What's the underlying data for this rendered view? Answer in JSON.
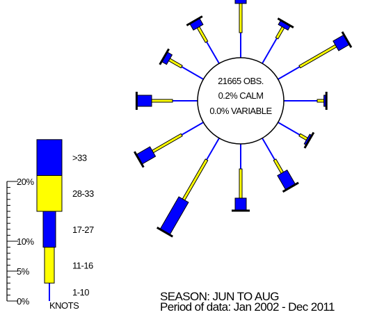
{
  "center": {
    "obs": "21665 OBS.",
    "calm": "0.2% CALM",
    "variable": "0.0% VARIABLE"
  },
  "legend": {
    "ticks": [
      {
        "pct": 0,
        "label": "0%"
      },
      {
        "pct": 5,
        "label": "5%"
      },
      {
        "pct": 10,
        "label": "10%"
      },
      {
        "pct": 20,
        "label": "20%"
      }
    ],
    "minor_ticks": [
      1,
      2,
      3,
      4,
      6,
      7,
      8,
      9,
      11,
      12,
      13,
      14,
      15,
      16,
      17,
      18,
      19,
      21,
      22,
      23
    ],
    "bands": [
      {
        "label": "1-10",
        "from": 0,
        "to": 3
      },
      {
        "label": "11-16",
        "from": 3,
        "to": 9
      },
      {
        "label": "17-27",
        "from": 9,
        "to": 15
      },
      {
        "label": "28-33",
        "from": 15,
        "to": 21
      },
      {
        "label": ">33",
        "from": 21,
        "to": 27
      }
    ],
    "unit": "KNOTS"
  },
  "footer": {
    "season": "SEASON: JUN TO AUG",
    "period": "Period of data: Jan 2002 - Dec 2011"
  },
  "colors": {
    "speed_1_10": "#0000ff",
    "speed_11_16": "#ffff00",
    "speed_17_27": "#0000ff",
    "speed_28_33": "#ffff00",
    "speed_gt_33": "#0000ff",
    "outline": "#000000"
  },
  "chart_data": {
    "type": "wind-rose",
    "directions_deg": [
      0,
      30,
      60,
      90,
      120,
      150,
      180,
      210,
      240,
      270,
      300,
      330
    ],
    "speed_bins": [
      "1-10",
      "11-16",
      "17-27",
      "28-33",
      ">33"
    ],
    "frequency_pct": [
      [
        3.0,
        3.5,
        0.8,
        0,
        0
      ],
      [
        3.5,
        1.5,
        0.6,
        0,
        0
      ],
      [
        3.0,
        5.0,
        1.5,
        0,
        0
      ],
      [
        4.0,
        0.8,
        0.3,
        0,
        0
      ],
      [
        3.0,
        1.0,
        0.3,
        0,
        0
      ],
      [
        3.0,
        1.8,
        2.0,
        0,
        0
      ],
      [
        3.0,
        3.5,
        1.5,
        0,
        0
      ],
      [
        3.0,
        5.5,
        4.5,
        0,
        0
      ],
      [
        3.0,
        4.0,
        1.9,
        0,
        0
      ],
      [
        3.0,
        2.5,
        1.8,
        0,
        0
      ],
      [
        3.0,
        1.7,
        0.7,
        0,
        0
      ],
      [
        3.0,
        2.0,
        0.9,
        0,
        0
      ]
    ]
  }
}
